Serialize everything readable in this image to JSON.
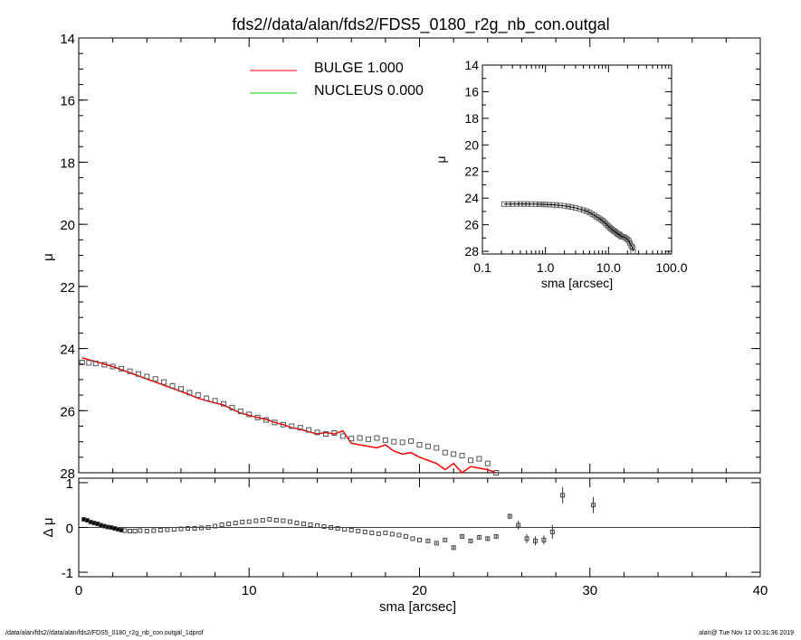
{
  "title": "fds2//data/alan/fds2/FDS5_0180_r2g_nb_con.outgal",
  "footer": {
    "left": "/data/alan/fds2//data/alan/fds2/FDS5_0180_r2g_nb_con.outgal_1dprof",
    "right": "alan@  Tue Nov 12 00:31:36 2019"
  },
  "colors": {
    "bulge": "#ff0000",
    "nucleus": "#00cc00",
    "data": "#000000"
  },
  "chart_data": [
    {
      "type": "scatter",
      "name": "main",
      "xlabel": "sma [arcsec]",
      "ylabel": "μ",
      "xlim": [
        0,
        40
      ],
      "ylim": [
        28,
        14
      ],
      "xticks": [
        0,
        10,
        20,
        30,
        40
      ],
      "yticks": [
        14,
        16,
        18,
        20,
        22,
        24,
        26,
        28
      ],
      "legend_position": "top-center",
      "legend": [
        {
          "label": "BULGE  1.000",
          "color": "#ff0000"
        },
        {
          "label": "NUCLEUS  0.000",
          "color": "#00cc00"
        }
      ],
      "series": [
        {
          "name": "data",
          "x": [
            0.2,
            0.6,
            1.0,
            1.5,
            2.0,
            2.5,
            3.0,
            3.5,
            4.0,
            4.5,
            5.0,
            5.5,
            6.0,
            6.5,
            7.0,
            7.5,
            8.0,
            8.5,
            9.0,
            9.5,
            10.0,
            10.5,
            11.0,
            11.5,
            12.0,
            12.5,
            13.0,
            13.5,
            14.0,
            14.5,
            15.0,
            15.5,
            16.0,
            16.5,
            17.0,
            17.5,
            18.0,
            18.5,
            19.0,
            19.5,
            20.0,
            20.5,
            21.0,
            21.5,
            22.0,
            22.5,
            23.0,
            23.5,
            24.0,
            24.5
          ],
          "y": [
            24.45,
            24.46,
            24.48,
            24.52,
            24.58,
            24.65,
            24.73,
            24.82,
            24.9,
            24.98,
            25.08,
            25.2,
            25.3,
            25.42,
            25.5,
            25.6,
            25.68,
            25.78,
            25.9,
            26.02,
            26.12,
            26.22,
            26.3,
            26.38,
            26.45,
            26.5,
            26.55,
            26.62,
            26.7,
            26.75,
            26.72,
            26.82,
            26.9,
            26.88,
            26.92,
            26.88,
            26.95,
            27.0,
            27.02,
            26.98,
            27.1,
            27.15,
            27.2,
            27.35,
            27.4,
            27.45,
            27.6,
            27.55,
            27.7,
            28.0
          ]
        },
        {
          "name": "bulge",
          "x": [
            0.2,
            0.6,
            1.0,
            1.5,
            2.0,
            2.5,
            3.0,
            3.5,
            4.0,
            4.5,
            5.0,
            5.5,
            6.0,
            6.5,
            7.0,
            7.5,
            8.0,
            8.5,
            9.0,
            9.5,
            10.0,
            10.5,
            11.0,
            11.5,
            12.0,
            12.5,
            13.0,
            13.5,
            14.0,
            14.5,
            15.0,
            15.5,
            16.0,
            16.5,
            17.0,
            17.5,
            18.0,
            18.5,
            19.0,
            19.5,
            20.0,
            20.5,
            21.0,
            21.5,
            22.0,
            22.5,
            23.0,
            23.5,
            24.0,
            24.5
          ],
          "y": [
            24.3,
            24.36,
            24.42,
            24.5,
            24.58,
            24.68,
            24.78,
            24.88,
            24.98,
            25.08,
            25.18,
            25.28,
            25.38,
            25.48,
            25.6,
            25.68,
            25.75,
            25.82,
            25.95,
            26.08,
            26.15,
            26.22,
            26.28,
            26.38,
            26.45,
            26.55,
            26.6,
            26.68,
            26.75,
            26.7,
            26.75,
            26.65,
            27.05,
            27.1,
            27.15,
            27.2,
            27.1,
            27.3,
            27.4,
            27.35,
            27.5,
            27.6,
            27.7,
            27.9,
            27.7,
            28.0,
            27.8,
            27.85,
            27.9,
            28.0
          ]
        }
      ]
    },
    {
      "type": "scatter",
      "name": "residuals",
      "xlabel": "sma [arcsec]",
      "ylabel": "Δ μ",
      "xlim": [
        0,
        40
      ],
      "ylim": [
        -1.1,
        1.1
      ],
      "xticks": [
        0,
        10,
        20,
        30,
        40
      ],
      "yticks": [
        1,
        0,
        -1
      ],
      "series": [
        {
          "name": "residual",
          "x": [
            0.3,
            0.5,
            0.7,
            0.9,
            1.1,
            1.3,
            1.5,
            1.7,
            1.9,
            2.1,
            2.3,
            2.5,
            2.7,
            3.0,
            3.3,
            3.6,
            4.0,
            4.4,
            4.8,
            5.2,
            5.6,
            6.0,
            6.4,
            6.8,
            7.2,
            7.6,
            8.0,
            8.4,
            8.8,
            9.2,
            9.6,
            10.0,
            10.4,
            10.8,
            11.2,
            11.6,
            12.0,
            12.4,
            12.8,
            13.2,
            13.6,
            14.0,
            14.4,
            14.8,
            15.2,
            15.6,
            16.0,
            16.4,
            16.8,
            17.2,
            17.6,
            18.0,
            18.4,
            18.8,
            19.2,
            19.6,
            20.0,
            20.5,
            21.0,
            21.5,
            22.0,
            22.5,
            23.0,
            23.5,
            24.0,
            24.5,
            25.3,
            25.8,
            26.3,
            26.8,
            27.3,
            27.8,
            28.4,
            30.2
          ],
          "y": [
            0.18,
            0.16,
            0.12,
            0.1,
            0.08,
            0.05,
            0.03,
            0.01,
            0.0,
            -0.02,
            -0.04,
            -0.06,
            -0.07,
            -0.08,
            -0.08,
            -0.07,
            -0.08,
            -0.07,
            -0.06,
            -0.05,
            -0.04,
            -0.03,
            -0.02,
            -0.02,
            -0.01,
            0.0,
            0.03,
            0.06,
            0.08,
            0.1,
            0.12,
            0.13,
            0.15,
            0.16,
            0.18,
            0.16,
            0.15,
            0.13,
            0.1,
            0.08,
            0.06,
            0.04,
            0.02,
            0.0,
            -0.02,
            -0.04,
            -0.06,
            -0.08,
            -0.1,
            -0.12,
            -0.14,
            -0.12,
            -0.15,
            -0.17,
            -0.2,
            -0.25,
            -0.28,
            -0.3,
            -0.35,
            -0.28,
            -0.45,
            -0.2,
            -0.3,
            -0.22,
            -0.25,
            -0.2,
            0.25,
            0.05,
            -0.25,
            -0.3,
            -0.28,
            -0.1,
            0.72,
            0.5
          ],
          "err": [
            0.01,
            0.01,
            0.01,
            0.01,
            0.01,
            0.01,
            0.01,
            0.01,
            0.01,
            0.01,
            0.01,
            0.01,
            0.01,
            0.01,
            0.01,
            0.01,
            0.01,
            0.01,
            0.01,
            0.01,
            0.01,
            0.01,
            0.01,
            0.01,
            0.01,
            0.01,
            0.01,
            0.01,
            0.01,
            0.01,
            0.01,
            0.01,
            0.01,
            0.01,
            0.01,
            0.01,
            0.01,
            0.01,
            0.01,
            0.01,
            0.01,
            0.01,
            0.01,
            0.01,
            0.01,
            0.01,
            0.01,
            0.01,
            0.01,
            0.01,
            0.01,
            0.01,
            0.01,
            0.01,
            0.01,
            0.01,
            0.01,
            0.02,
            0.02,
            0.02,
            0.05,
            0.03,
            0.03,
            0.04,
            0.04,
            0.05,
            0.06,
            0.1,
            0.1,
            0.1,
            0.1,
            0.15,
            0.18,
            0.18
          ]
        }
      ]
    },
    {
      "type": "scatter",
      "name": "inset",
      "xlabel": "sma [arcsec]",
      "ylabel": "μ",
      "xscale": "log",
      "xlim": [
        0.1,
        100.0
      ],
      "ylim": [
        28.2,
        14
      ],
      "xtick_labels": [
        "0.1",
        "1.0",
        "10.0",
        "100.0"
      ],
      "xticks": [
        0.1,
        1.0,
        10.0,
        100.0
      ],
      "yticks": [
        14,
        16,
        18,
        20,
        22,
        24,
        26,
        28
      ],
      "series": [
        {
          "name": "data",
          "x": [
            0.22,
            0.26,
            0.3,
            0.35,
            0.4,
            0.46,
            0.52,
            0.6,
            0.7,
            0.8,
            0.9,
            1.0,
            1.15,
            1.3,
            1.5,
            1.7,
            2.0,
            2.3,
            2.6,
            3.0,
            3.5,
            4.0,
            4.5,
            5.0,
            5.5,
            6.0,
            6.5,
            7.0,
            7.5,
            8.0,
            8.5,
            9.0,
            9.5,
            10.0,
            10.5,
            11.0,
            11.5,
            12.0,
            12.5,
            13.0,
            13.5,
            14.0,
            14.5,
            15.0,
            15.5,
            16.0,
            17.0,
            18.0,
            19.0,
            20.0,
            21.0,
            22.0,
            23.0,
            24.0,
            24.5
          ],
          "y": [
            24.45,
            24.45,
            24.45,
            24.44,
            24.44,
            24.44,
            24.44,
            24.45,
            24.45,
            24.46,
            24.47,
            24.48,
            24.49,
            24.5,
            24.52,
            24.55,
            24.58,
            24.63,
            24.68,
            24.73,
            24.82,
            24.9,
            24.98,
            25.08,
            25.2,
            25.3,
            25.42,
            25.5,
            25.6,
            25.68,
            25.78,
            25.9,
            26.02,
            26.12,
            26.22,
            26.3,
            26.38,
            26.45,
            26.5,
            26.55,
            26.62,
            26.7,
            26.75,
            26.72,
            26.82,
            26.9,
            26.9,
            26.95,
            27.02,
            27.1,
            27.2,
            27.4,
            27.6,
            27.7,
            28.0
          ]
        }
      ]
    }
  ]
}
